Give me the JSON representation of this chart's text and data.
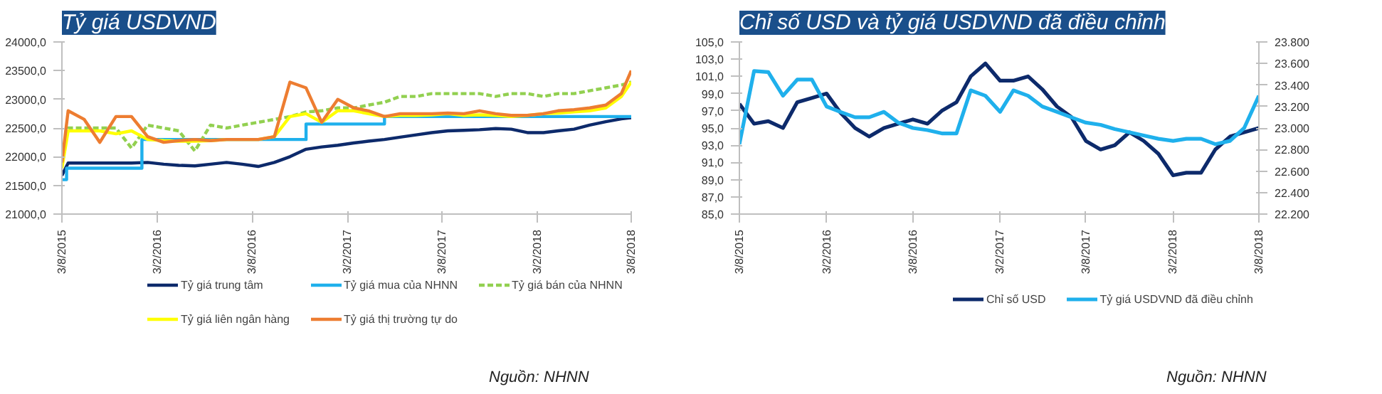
{
  "chart_data": [
    {
      "type": "line",
      "title": "Tỷ giá USDVND",
      "x": [
        "2015-08-03",
        "2015-08-15",
        "2015-09-15",
        "2015-10-15",
        "2015-11-15",
        "2015-12-15",
        "2016-01-15",
        "2016-02-15",
        "2016-03-15",
        "2016-04-15",
        "2016-05-15",
        "2016-06-15",
        "2016-07-15",
        "2016-08-15",
        "2016-09-15",
        "2016-10-15",
        "2016-11-15",
        "2016-12-15",
        "2017-01-15",
        "2017-02-15",
        "2017-03-15",
        "2017-04-15",
        "2017-05-15",
        "2017-06-15",
        "2017-07-15",
        "2017-08-15",
        "2017-09-15",
        "2017-10-15",
        "2017-11-15",
        "2017-12-15",
        "2018-01-15",
        "2018-02-15",
        "2018-03-15",
        "2018-04-15",
        "2018-05-15",
        "2018-06-15",
        "2018-07-15",
        "2018-08-03"
      ],
      "series": [
        {
          "name": "Tỷ giá trung tâm",
          "color": "#0d2a6b",
          "values": [
            21673,
            21890,
            21890,
            21890,
            21890,
            21890,
            21900,
            21870,
            21850,
            21840,
            21870,
            21900,
            21870,
            21830,
            21900,
            22000,
            22130,
            22170,
            22200,
            22240,
            22270,
            22300,
            22340,
            22380,
            22420,
            22450,
            22460,
            22470,
            22490,
            22480,
            22420,
            22420,
            22450,
            22480,
            22550,
            22610,
            22660,
            22680
          ]
        },
        {
          "name": "Tỷ giá mua của NHNN",
          "color": "#1fb0ec",
          "type": "step",
          "x": [
            "2015-08-03",
            "2015-08-12",
            "2016-01-04",
            "2016-11-15",
            "2017-04-15",
            "2018-08-03"
          ],
          "values": [
            21600,
            21800,
            22300,
            22570,
            22700,
            22700
          ]
        },
        {
          "name": "Tỷ giá bán của NHNN",
          "color": "#92d050",
          "line_style": "dashed",
          "values": [
            21900,
            22500,
            22500,
            22500,
            22500,
            22150,
            22550,
            22500,
            22450,
            22100,
            22550,
            22500,
            22550,
            22600,
            22650,
            22700,
            22780,
            22800,
            22850,
            22850,
            22900,
            22950,
            23050,
            23050,
            23100,
            23100,
            23100,
            23100,
            23050,
            23100,
            23100,
            23050,
            23100,
            23100,
            23150,
            23200,
            23250,
            23300
          ]
        },
        {
          "name": "Tỷ giá liên ngân hàng",
          "color": "#ffff00",
          "values": [
            21800,
            22450,
            22450,
            22450,
            22400,
            22450,
            22300,
            22280,
            22270,
            22270,
            22280,
            22300,
            22300,
            22300,
            22350,
            22700,
            22750,
            22600,
            22800,
            22800,
            22750,
            22700,
            22720,
            22720,
            22730,
            22750,
            22720,
            22730,
            22720,
            22700,
            22720,
            22750,
            22760,
            22780,
            22800,
            22850,
            23050,
            23300
          ]
        },
        {
          "name": "Tỷ giá thị trường tự do",
          "color": "#ed7d31",
          "values": [
            21900,
            22800,
            22650,
            22250,
            22700,
            22700,
            22350,
            22250,
            22280,
            22300,
            22280,
            22300,
            22300,
            22300,
            22350,
            23300,
            23200,
            22600,
            23000,
            22850,
            22800,
            22700,
            22750,
            22750,
            22750,
            22760,
            22750,
            22800,
            22750,
            22720,
            22720,
            22750,
            22800,
            22820,
            22850,
            22900,
            23100,
            23500
          ]
        }
      ],
      "xlim": [
        "2015-08-03",
        "2018-08-03"
      ],
      "xticks": [
        {
          "value": "2015-08-03",
          "label": "3/8/2015"
        },
        {
          "value": "2016-02-03",
          "label": "3/2/2016"
        },
        {
          "value": "2016-08-03",
          "label": "3/8/2016"
        },
        {
          "value": "2017-02-03",
          "label": "3/2/2017"
        },
        {
          "value": "2017-08-03",
          "label": "3/8/2017"
        },
        {
          "value": "2018-02-03",
          "label": "3/2/2018"
        },
        {
          "value": "2018-08-03",
          "label": "3/8/2018"
        }
      ],
      "ylim": [
        21000,
        24000
      ],
      "yticks": [
        {
          "value": 21000,
          "label": "21000,0"
        },
        {
          "value": 21500,
          "label": "21500,0"
        },
        {
          "value": 22000,
          "label": "22000,0"
        },
        {
          "value": 22500,
          "label": "22500,0"
        },
        {
          "value": 23000,
          "label": "23000,0"
        },
        {
          "value": 23500,
          "label": "23500,0"
        },
        {
          "value": 24000,
          "label": "24000,0"
        }
      ],
      "legend": "bottom",
      "annotations": [
        "Nguồn: NHNN"
      ]
    },
    {
      "type": "line",
      "title": "Chỉ số USD và tỷ giá USDVND đã điều chỉnh",
      "x": [
        "2015-08-03",
        "2015-09-03",
        "2015-10-03",
        "2015-11-03",
        "2015-12-03",
        "2016-01-03",
        "2016-02-03",
        "2016-03-03",
        "2016-04-03",
        "2016-05-03",
        "2016-06-03",
        "2016-07-03",
        "2016-08-03",
        "2016-09-03",
        "2016-10-03",
        "2016-11-03",
        "2016-12-03",
        "2017-01-03",
        "2017-02-03",
        "2017-03-03",
        "2017-04-03",
        "2017-05-03",
        "2017-06-03",
        "2017-07-03",
        "2017-08-03",
        "2017-09-03",
        "2017-10-03",
        "2017-11-03",
        "2017-12-03",
        "2018-01-03",
        "2018-02-03",
        "2018-03-03",
        "2018-04-03",
        "2018-05-03",
        "2018-06-03",
        "2018-07-03",
        "2018-08-03"
      ],
      "series": [
        {
          "name": "Chỉ số USD",
          "color": "#0d2a6b",
          "values": [
            97.8,
            95.5,
            95.8,
            95.0,
            98.0,
            98.5,
            99.0,
            96.8,
            95.0,
            94.0,
            95.0,
            95.5,
            96.0,
            95.5,
            97.0,
            98.0,
            101.0,
            102.5,
            100.5,
            100.5,
            101.0,
            99.5,
            97.5,
            96.3,
            93.5,
            92.5,
            93.0,
            94.5,
            93.5,
            92.0,
            89.5,
            89.8,
            89.8,
            92.5,
            94.0,
            94.5,
            95.0
          ]
        },
        {
          "name": "Tỷ giá USDVND đã điều chỉnh",
          "color": "#1fb0ec",
          "axis": "y2",
          "values": [
            22850,
            23530,
            23520,
            23300,
            23450,
            23450,
            23200,
            23150,
            23100,
            23100,
            23150,
            23050,
            23000,
            22980,
            22950,
            22950,
            23350,
            23300,
            23150,
            23350,
            23300,
            23200,
            23150,
            23100,
            23050,
            23030,
            22990,
            22960,
            22930,
            22900,
            22880,
            22900,
            22900,
            22850,
            22880,
            23000,
            23300
          ]
        }
      ],
      "xlim": [
        "2015-08-03",
        "2018-08-03"
      ],
      "xticks": [
        {
          "value": "2015-08-03",
          "label": "3/8/2015"
        },
        {
          "value": "2016-02-03",
          "label": "3/2/2016"
        },
        {
          "value": "2016-08-03",
          "label": "3/8/2016"
        },
        {
          "value": "2017-02-03",
          "label": "3/2/2017"
        },
        {
          "value": "2017-08-03",
          "label": "3/8/2017"
        },
        {
          "value": "2018-02-03",
          "label": "3/2/2018"
        },
        {
          "value": "2018-08-03",
          "label": "3/8/2018"
        }
      ],
      "ylim": [
        85,
        105
      ],
      "yticks": [
        {
          "value": 85,
          "label": "85,0"
        },
        {
          "value": 87,
          "label": "87,0"
        },
        {
          "value": 89,
          "label": "89,0"
        },
        {
          "value": 91,
          "label": "91,0"
        },
        {
          "value": 93,
          "label": "93,0"
        },
        {
          "value": 95,
          "label": "95,0"
        },
        {
          "value": 97,
          "label": "97,0"
        },
        {
          "value": 99,
          "label": "99,0"
        },
        {
          "value": 101,
          "label": "101,0"
        },
        {
          "value": 103,
          "label": "103,0"
        },
        {
          "value": 105,
          "label": "105,0"
        }
      ],
      "y2lim": [
        22200,
        23800
      ],
      "y2ticks": [
        {
          "value": 22200,
          "label": "22.200"
        },
        {
          "value": 22400,
          "label": "22.400"
        },
        {
          "value": 22600,
          "label": "22.600"
        },
        {
          "value": 22800,
          "label": "22.800"
        },
        {
          "value": 23000,
          "label": "23.000"
        },
        {
          "value": 23200,
          "label": "23.200"
        },
        {
          "value": 23400,
          "label": "23.400"
        },
        {
          "value": 23600,
          "label": "23.600"
        },
        {
          "value": 23800,
          "label": "23.800"
        }
      ],
      "legend": "bottom",
      "annotations": [
        "Nguồn: NHNN"
      ]
    }
  ]
}
